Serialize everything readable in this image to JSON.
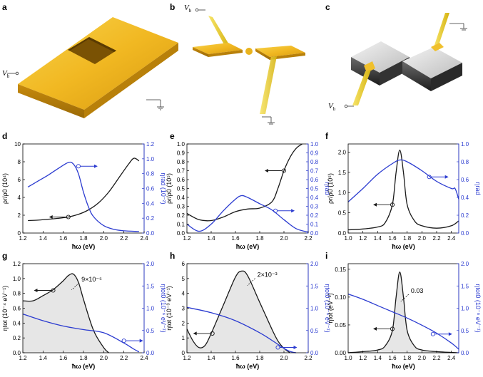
{
  "figure": {
    "panels_top": [
      {
        "label": "a",
        "vb": "V",
        "vb_sub": "b"
      },
      {
        "label": "b",
        "vb": "V",
        "vb_sub": "b"
      },
      {
        "label": "c",
        "vb": "V",
        "vb_sub": "b"
      }
    ],
    "colors": {
      "black": "#1a1a1a",
      "blue": "#2b3bd0",
      "gold": "#e8b51f",
      "fill": "#e6e6e6"
    }
  },
  "chart_data": [
    {
      "id": "d",
      "type": "line",
      "title": "d",
      "xlabel": "ħω (eV)",
      "xlim": [
        1.2,
        2.4
      ],
      "xticks": [
        "1.2",
        "1.4",
        "1.6",
        "1.8",
        "2.0",
        "2.2",
        "2.4"
      ],
      "ylabel_left": "ρr/ρ0 (10⁴)",
      "ylim_left": [
        0,
        10
      ],
      "yticks_left": [
        "0",
        "2",
        "4",
        "6",
        "8",
        "10"
      ],
      "ylabel_right": "ηrad (10⁻²)",
      "ylim_right": [
        0,
        1.2
      ],
      "yticks_right": [
        "0.0",
        "0.2",
        "0.4",
        "0.6",
        "0.8",
        "1.0",
        "1.2"
      ],
      "series": [
        {
          "name": "ρr/ρ0",
          "axis": "left",
          "color": "black",
          "x": [
            1.25,
            1.35,
            1.45,
            1.55,
            1.65,
            1.75,
            1.85,
            1.95,
            2.05,
            2.15,
            2.25,
            2.3,
            2.35
          ],
          "y": [
            1.4,
            1.45,
            1.55,
            1.65,
            1.8,
            2.1,
            2.6,
            3.4,
            4.6,
            6.2,
            7.8,
            8.4,
            8.1
          ]
        },
        {
          "name": "ηrad",
          "axis": "right",
          "color": "blue",
          "x": [
            1.25,
            1.35,
            1.45,
            1.55,
            1.65,
            1.7,
            1.75,
            1.8,
            1.85,
            1.9,
            2.0,
            2.1,
            2.2,
            2.35
          ],
          "y": [
            0.62,
            0.7,
            0.78,
            0.87,
            0.95,
            0.93,
            0.8,
            0.55,
            0.35,
            0.22,
            0.1,
            0.05,
            0.03,
            0.02
          ]
        }
      ],
      "markers": [
        {
          "axis": "left",
          "x": 1.65,
          "y": 1.8,
          "dir": "left"
        },
        {
          "axis": "right",
          "x": 1.75,
          "y": 0.9,
          "dir": "right"
        }
      ]
    },
    {
      "id": "e",
      "type": "line",
      "title": "e",
      "xlabel": "ħω (eV)",
      "xlim": [
        1.2,
        2.2
      ],
      "xticks": [
        "1.2",
        "1.4",
        "1.6",
        "1.8",
        "2.0",
        "2.2"
      ],
      "ylabel_left": "ρr/ρ0 (10⁵)",
      "ylim_left": [
        0,
        1.0
      ],
      "yticks_left": [
        "0.0",
        "0.1",
        "0.2",
        "0.3",
        "0.4",
        "0.5",
        "0.6",
        "0.7",
        "0.8",
        "0.9",
        "1.0"
      ],
      "ylabel_right": "ηrad",
      "ylim_right": [
        0,
        1.0
      ],
      "yticks_right": [
        "0.0",
        "0.1",
        "0.2",
        "0.3",
        "0.4",
        "0.5",
        "0.6",
        "0.7",
        "0.8",
        "0.9",
        "1.0"
      ],
      "series": [
        {
          "name": "ρr/ρ0",
          "axis": "left",
          "color": "black",
          "x": [
            1.2,
            1.3,
            1.4,
            1.5,
            1.6,
            1.7,
            1.8,
            1.9,
            1.95,
            2.0,
            2.05,
            2.1,
            2.15
          ],
          "y": [
            0.22,
            0.15,
            0.14,
            0.18,
            0.24,
            0.27,
            0.28,
            0.35,
            0.5,
            0.7,
            0.85,
            0.95,
            1.0
          ]
        },
        {
          "name": "ηrad",
          "axis": "right",
          "color": "blue",
          "x": [
            1.2,
            1.3,
            1.4,
            1.5,
            1.6,
            1.65,
            1.7,
            1.8,
            1.9,
            2.0,
            2.1,
            2.2
          ],
          "y": [
            0.1,
            0.02,
            0.1,
            0.25,
            0.38,
            0.42,
            0.4,
            0.33,
            0.26,
            0.15,
            0.05,
            0.01
          ]
        }
      ],
      "markers": [
        {
          "axis": "left",
          "x": 2.0,
          "y": 0.7,
          "dir": "left"
        },
        {
          "axis": "right",
          "x": 1.93,
          "y": 0.25,
          "dir": "right"
        }
      ]
    },
    {
      "id": "f",
      "type": "line",
      "title": "f",
      "xlabel": "ħω (eV)",
      "xlim": [
        1.0,
        2.5
      ],
      "xticks": [
        "1.0",
        "1.2",
        "1.4",
        "1.6",
        "1.8",
        "2.0",
        "2.2",
        "2.4"
      ],
      "ylabel_left": "ρr/ρ0 (10⁵)",
      "ylim_left": [
        0,
        2.2
      ],
      "yticks_left": [
        "0.0",
        "0.5",
        "1.0",
        "1.5",
        "2.0"
      ],
      "ylabel_right": "ηrad",
      "ylim_right": [
        0,
        1.0
      ],
      "yticks_right": [
        "0.0",
        "0.2",
        "0.4",
        "0.6",
        "0.8",
        "1.0"
      ],
      "series": [
        {
          "name": "ρr/ρ0",
          "axis": "left",
          "color": "black",
          "x": [
            1.0,
            1.2,
            1.4,
            1.5,
            1.6,
            1.65,
            1.7,
            1.75,
            1.8,
            1.9,
            2.0,
            2.2,
            2.4,
            2.5
          ],
          "y": [
            0.08,
            0.1,
            0.15,
            0.25,
            0.7,
            1.5,
            2.05,
            1.5,
            0.7,
            0.3,
            0.18,
            0.12,
            0.18,
            0.3
          ]
        },
        {
          "name": "ηrad",
          "axis": "right",
          "color": "blue",
          "x": [
            1.0,
            1.2,
            1.4,
            1.6,
            1.7,
            1.8,
            2.0,
            2.2,
            2.4,
            2.45,
            2.5
          ],
          "y": [
            0.35,
            0.5,
            0.66,
            0.78,
            0.82,
            0.8,
            0.7,
            0.58,
            0.5,
            0.5,
            0.38
          ]
        }
      ],
      "markers": [
        {
          "axis": "left",
          "x": 1.6,
          "y": 0.7,
          "dir": "left"
        },
        {
          "axis": "right",
          "x": 2.1,
          "y": 0.63,
          "dir": "right"
        }
      ]
    },
    {
      "id": "g",
      "type": "area",
      "title": "g",
      "xlabel": "ħω (eV)",
      "xlim": [
        1.2,
        2.4
      ],
      "xticks": [
        "1.2",
        "1.4",
        "1.6",
        "1.8",
        "2.0",
        "2.2",
        "2.4"
      ],
      "ylabel_left": "ηtot (10⁻⁴ eV⁻¹)",
      "ylim_left": [
        0,
        1.2
      ],
      "yticks_left": [
        "0.0",
        "0.2",
        "0.4",
        "0.6",
        "0.8",
        "1.0",
        "1.2"
      ],
      "ylabel_right": "ηtot0 (10⁻⁶ eV⁻¹)",
      "ylim_right": [
        0,
        2.0
      ],
      "yticks_right": [
        "0.0",
        "0.5",
        "1.0",
        "1.5",
        "2.0"
      ],
      "annotation": "9×10⁻⁵",
      "series": [
        {
          "name": "ηtot",
          "axis": "left",
          "color": "black",
          "fill": true,
          "x": [
            1.2,
            1.3,
            1.4,
            1.5,
            1.6,
            1.65,
            1.7,
            1.75,
            1.8,
            1.9,
            2.0,
            2.05
          ],
          "y": [
            0.7,
            0.7,
            0.77,
            0.85,
            0.97,
            1.04,
            1.06,
            0.95,
            0.72,
            0.3,
            0.07,
            0.0
          ]
        },
        {
          "name": "ηtot0",
          "axis": "right",
          "color": "blue",
          "x": [
            1.2,
            1.4,
            1.6,
            1.8,
            2.0,
            2.2,
            2.3,
            2.35
          ],
          "y": [
            0.87,
            0.72,
            0.6,
            0.52,
            0.45,
            0.22,
            0.08,
            0.02
          ]
        }
      ],
      "markers": [
        {
          "axis": "left",
          "x": 1.5,
          "y": 0.84,
          "dir": "left"
        },
        {
          "axis": "right",
          "x": 2.2,
          "y": 0.27,
          "dir": "right"
        }
      ]
    },
    {
      "id": "h",
      "type": "area",
      "title": "h",
      "xlabel": "ħω (eV)",
      "xlim": [
        1.2,
        2.2
      ],
      "xticks": [
        "1.2",
        "1.4",
        "1.6",
        "1.8",
        "2.0",
        "2.2"
      ],
      "ylabel_left": "ηtot (10⁻³ eV⁻¹)",
      "ylim_left": [
        0,
        6
      ],
      "yticks_left": [
        "0",
        "1",
        "2",
        "3",
        "4",
        "5",
        "6"
      ],
      "ylabel_right": "ηtot0 (10⁻⁶ eV⁻¹)",
      "ylim_right": [
        0,
        2.0
      ],
      "yticks_right": [
        "0.0",
        "0.5",
        "1.0",
        "1.5",
        "2.0"
      ],
      "annotation": "2×10⁻³",
      "series": [
        {
          "name": "ηtot",
          "axis": "left",
          "color": "black",
          "fill": true,
          "x": [
            1.2,
            1.25,
            1.3,
            1.35,
            1.4,
            1.5,
            1.6,
            1.65,
            1.7,
            1.8,
            1.9,
            1.95,
            2.0,
            2.05
          ],
          "y": [
            1.6,
            0.8,
            0.35,
            0.5,
            1.3,
            3.2,
            5.1,
            5.5,
            5.2,
            3.4,
            1.6,
            0.8,
            0.3,
            0.0
          ]
        },
        {
          "name": "ηtot0",
          "axis": "right",
          "color": "blue",
          "x": [
            1.2,
            1.4,
            1.6,
            1.8,
            1.9,
            2.0,
            2.05,
            2.1
          ],
          "y": [
            1.02,
            0.9,
            0.72,
            0.45,
            0.28,
            0.1,
            0.03,
            0.0
          ]
        }
      ],
      "markers": [
        {
          "axis": "left",
          "x": 1.41,
          "y": 1.3,
          "dir": "left"
        },
        {
          "axis": "right",
          "x": 1.95,
          "y": 0.12,
          "dir": "right"
        }
      ]
    },
    {
      "id": "i",
      "type": "area",
      "title": "i",
      "xlabel": "ħω (eV)",
      "xlim": [
        1.0,
        2.5
      ],
      "xticks": [
        "1.0",
        "1.2",
        "1.4",
        "1.6",
        "1.8",
        "2.0",
        "2.2",
        "2.4"
      ],
      "ylabel_left": "ηtot (eV⁻¹)",
      "ylim_left": [
        0,
        0.16
      ],
      "yticks_left": [
        "0.00",
        "0.05",
        "0.10",
        "0.15"
      ],
      "ylabel_right": "ηtot0 (10⁻⁶ eV⁻¹)",
      "ylim_right": [
        0,
        2.0
      ],
      "yticks_right": [
        "0.0",
        "0.5",
        "1.0",
        "1.5",
        "2.0"
      ],
      "annotation": "0.03",
      "series": [
        {
          "name": "ηtot",
          "axis": "left",
          "color": "black",
          "fill": true,
          "x": [
            1.0,
            1.2,
            1.4,
            1.5,
            1.6,
            1.65,
            1.7,
            1.75,
            1.8,
            1.9,
            2.0,
            2.2,
            2.5
          ],
          "y": [
            0.0,
            0.002,
            0.005,
            0.012,
            0.04,
            0.1,
            0.145,
            0.1,
            0.04,
            0.012,
            0.005,
            0.002,
            0.0
          ]
        },
        {
          "name": "ηtot0",
          "axis": "right",
          "color": "blue",
          "x": [
            1.0,
            1.2,
            1.4,
            1.6,
            1.8,
            2.0,
            2.2,
            2.4,
            2.5
          ],
          "y": [
            1.32,
            1.2,
            1.06,
            0.92,
            0.78,
            0.62,
            0.44,
            0.22,
            0.08
          ]
        }
      ],
      "markers": [
        {
          "axis": "left",
          "x": 1.6,
          "y": 0.043,
          "dir": "left"
        },
        {
          "axis": "right",
          "x": 2.15,
          "y": 0.42,
          "dir": "right"
        }
      ]
    }
  ]
}
